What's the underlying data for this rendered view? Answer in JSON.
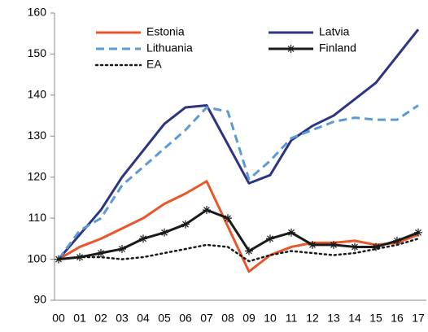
{
  "chart_data": {
    "type": "line",
    "categories": [
      "00",
      "01",
      "02",
      "03",
      "04",
      "05",
      "06",
      "07",
      "08",
      "09",
      "10",
      "11",
      "12",
      "13",
      "14",
      "15",
      "16",
      "17"
    ],
    "series": [
      {
        "name": "Estonia",
        "color": "#e8562a",
        "dash": "solid",
        "values": [
          100,
          103,
          105,
          107.5,
          110,
          113.5,
          116,
          119,
          108,
          97,
          101,
          103,
          104,
          104,
          104.5,
          103.5,
          104,
          106
        ]
      },
      {
        "name": "Latvia",
        "color": "#2e3580",
        "dash": "solid",
        "values": [
          100,
          106,
          112,
          120,
          126.5,
          133,
          137,
          137.5,
          128,
          118.5,
          120.5,
          129,
          132.5,
          135,
          139,
          143,
          149.5,
          156
        ]
      },
      {
        "name": "Lithuania",
        "color": "#5b9bd5",
        "dash": "dashed",
        "values": [
          100,
          107,
          110,
          118,
          122.5,
          127,
          131.5,
          137,
          136,
          119.5,
          124,
          129.5,
          131.5,
          133.5,
          134.5,
          134,
          134,
          137.5
        ]
      },
      {
        "name": "Finland",
        "color": "#1a1a1a",
        "dash": "solid",
        "marker": "star",
        "values": [
          100,
          100.5,
          101.5,
          102.5,
          105,
          106.5,
          108.5,
          112,
          110,
          102,
          105,
          106.5,
          103.5,
          103.5,
          103,
          103,
          104.5,
          106.5
        ]
      },
      {
        "name": "EA",
        "color": "#1a1a1a",
        "dash": "dotted",
        "values": [
          100,
          100.5,
          100.5,
          100,
          100.5,
          101.5,
          102.5,
          103.5,
          103,
          99.5,
          101,
          102,
          101.5,
          101,
          101.5,
          102.5,
          103.5,
          105
        ]
      }
    ],
    "ylim": [
      90,
      160
    ],
    "yticks": [
      90,
      100,
      110,
      120,
      130,
      140,
      150,
      160
    ],
    "grid": false,
    "legend": "top"
  }
}
